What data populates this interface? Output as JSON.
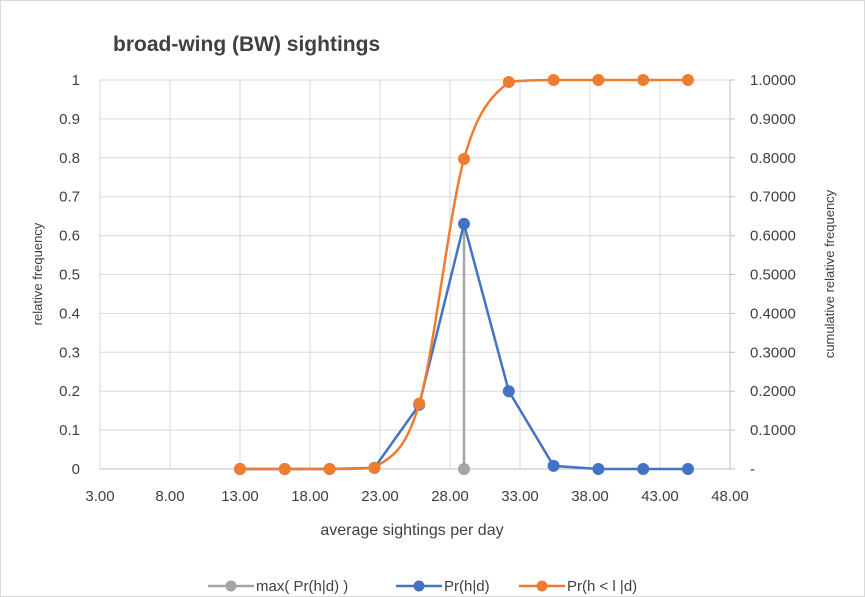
{
  "chart_data": {
    "type": "line",
    "title": "broad-wing (BW) sightings",
    "xlabel": "average sightings per day",
    "ylabel": "relative frequency",
    "y2label": "cumulative relative frequency",
    "xlim": [
      3,
      48
    ],
    "ylim": [
      0,
      1
    ],
    "y2lim": [
      0,
      1
    ],
    "x_ticks": [
      "3.00",
      "8.00",
      "13.00",
      "18.00",
      "23.00",
      "28.00",
      "33.00",
      "38.00",
      "43.00",
      "48.00"
    ],
    "y_ticks": [
      "0",
      "0.1",
      "0.2",
      "0.3",
      "0.4",
      "0.5",
      "0.6",
      "0.7",
      "0.8",
      "0.9",
      "1"
    ],
    "y2_ticks": [
      "-",
      "0.1000",
      "0.2000",
      "0.3000",
      "0.4000",
      "0.5000",
      "0.6000",
      "0.7000",
      "0.8000",
      "0.9000",
      "1.0000"
    ],
    "grid": true,
    "legend_position": "bottom",
    "series": [
      {
        "name": "max( Pr(h|d) )",
        "color": "#A5A5A5",
        "axis": "left",
        "x": [
          29.0,
          29.0
        ],
        "y": [
          0,
          0.63
        ]
      },
      {
        "name": "Pr(h|d)",
        "color": "#4472C4",
        "axis": "left",
        "x": [
          13.0,
          16.2,
          19.4,
          22.6,
          25.8,
          29.0,
          32.2,
          35.4,
          38.6,
          41.8,
          45.0
        ],
        "y": [
          0,
          0,
          0,
          0.003,
          0.165,
          0.63,
          0.2,
          0.008,
          0,
          0,
          0
        ]
      },
      {
        "name": "Pr(h < l |d)",
        "color": "#ED7D31",
        "axis": "right",
        "x": [
          13.0,
          16.2,
          19.4,
          22.6,
          25.8,
          29.0,
          32.2,
          35.4,
          38.6,
          41.8,
          45.0
        ],
        "y": [
          0,
          0,
          0,
          0.003,
          0.168,
          0.797,
          0.995,
          1.0,
          1.0,
          1.0,
          1.0
        ]
      }
    ]
  }
}
